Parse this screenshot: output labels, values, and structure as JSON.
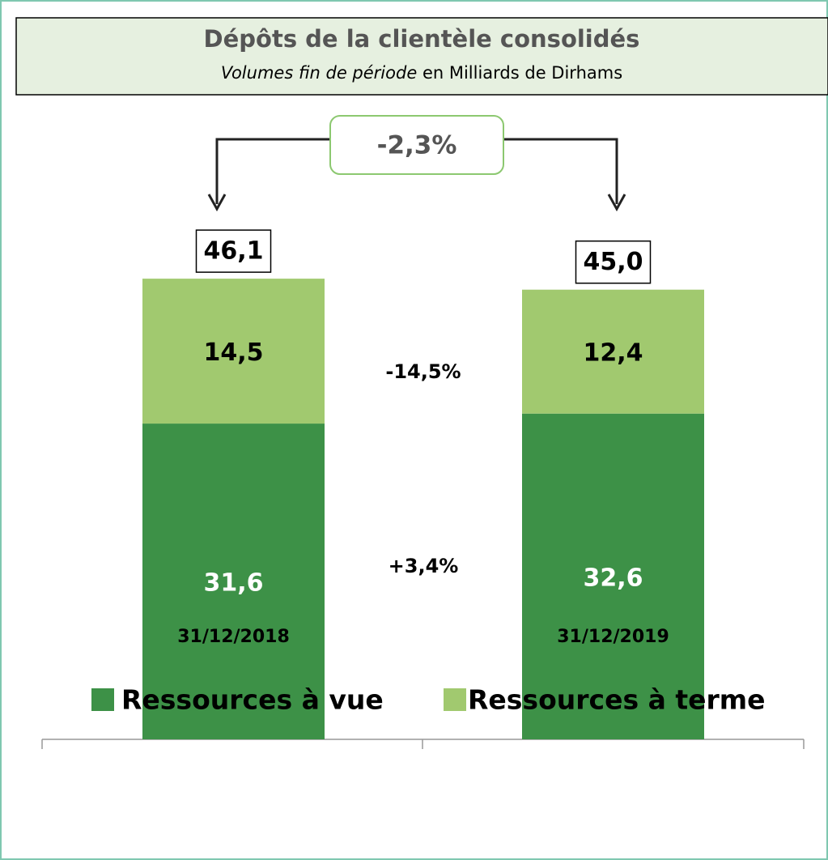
{
  "chart_data": {
    "type": "stacked_bar",
    "title": "Dépôts de la clientèle consolidés",
    "subtitle_italic": "Volumes fin de période",
    "subtitle": "en Milliards de Dirhams",
    "categories": [
      "31/12/2018",
      "31/12/2019"
    ],
    "series": [
      {
        "name": "Ressources à vue",
        "color": "#3d9147",
        "values": [
          31.6,
          32.6
        ],
        "value_labels": [
          "31,6",
          "32,6"
        ]
      },
      {
        "name": "Ressources à terme",
        "color": "#a1c96f",
        "values": [
          14.5,
          12.4
        ],
        "value_labels": [
          "14,5",
          "12,4"
        ]
      }
    ],
    "totals": {
      "values": [
        46.1,
        45.0
      ],
      "value_labels": [
        "46,1",
        "45,0"
      ]
    },
    "annotations": [
      "-2,3%",
      "-14,5%",
      "+3,4%"
    ],
    "ylim": [
      0,
      50
    ]
  }
}
